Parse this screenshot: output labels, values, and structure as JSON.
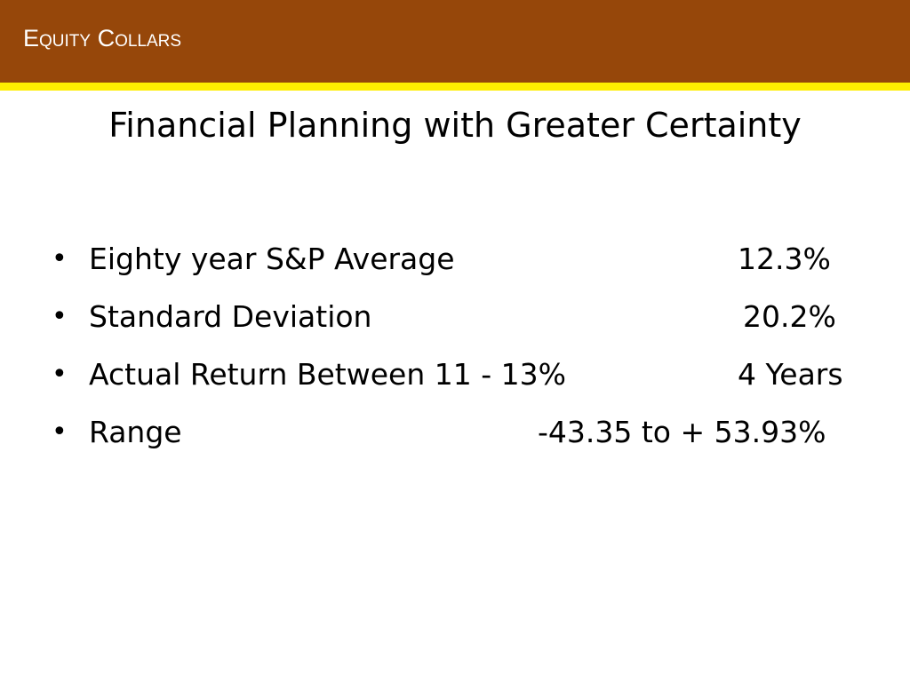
{
  "header": {
    "section_title": "Equity Collars",
    "brand_color": "#96470a",
    "accent_color": "#ffee00"
  },
  "slide": {
    "title": "Financial Planning with Greater Certainty",
    "bullet_symbol": "•",
    "bullets": [
      {
        "label": "Eighty year S&P Average",
        "value": "12.3%"
      },
      {
        "label": "Standard Deviation",
        "value": "20.2%"
      },
      {
        "label": "Actual Return Between 11 - 13%",
        "value": "4 Years"
      },
      {
        "label": "Range",
        "value": "-43.35 to + 53.93%"
      }
    ]
  }
}
